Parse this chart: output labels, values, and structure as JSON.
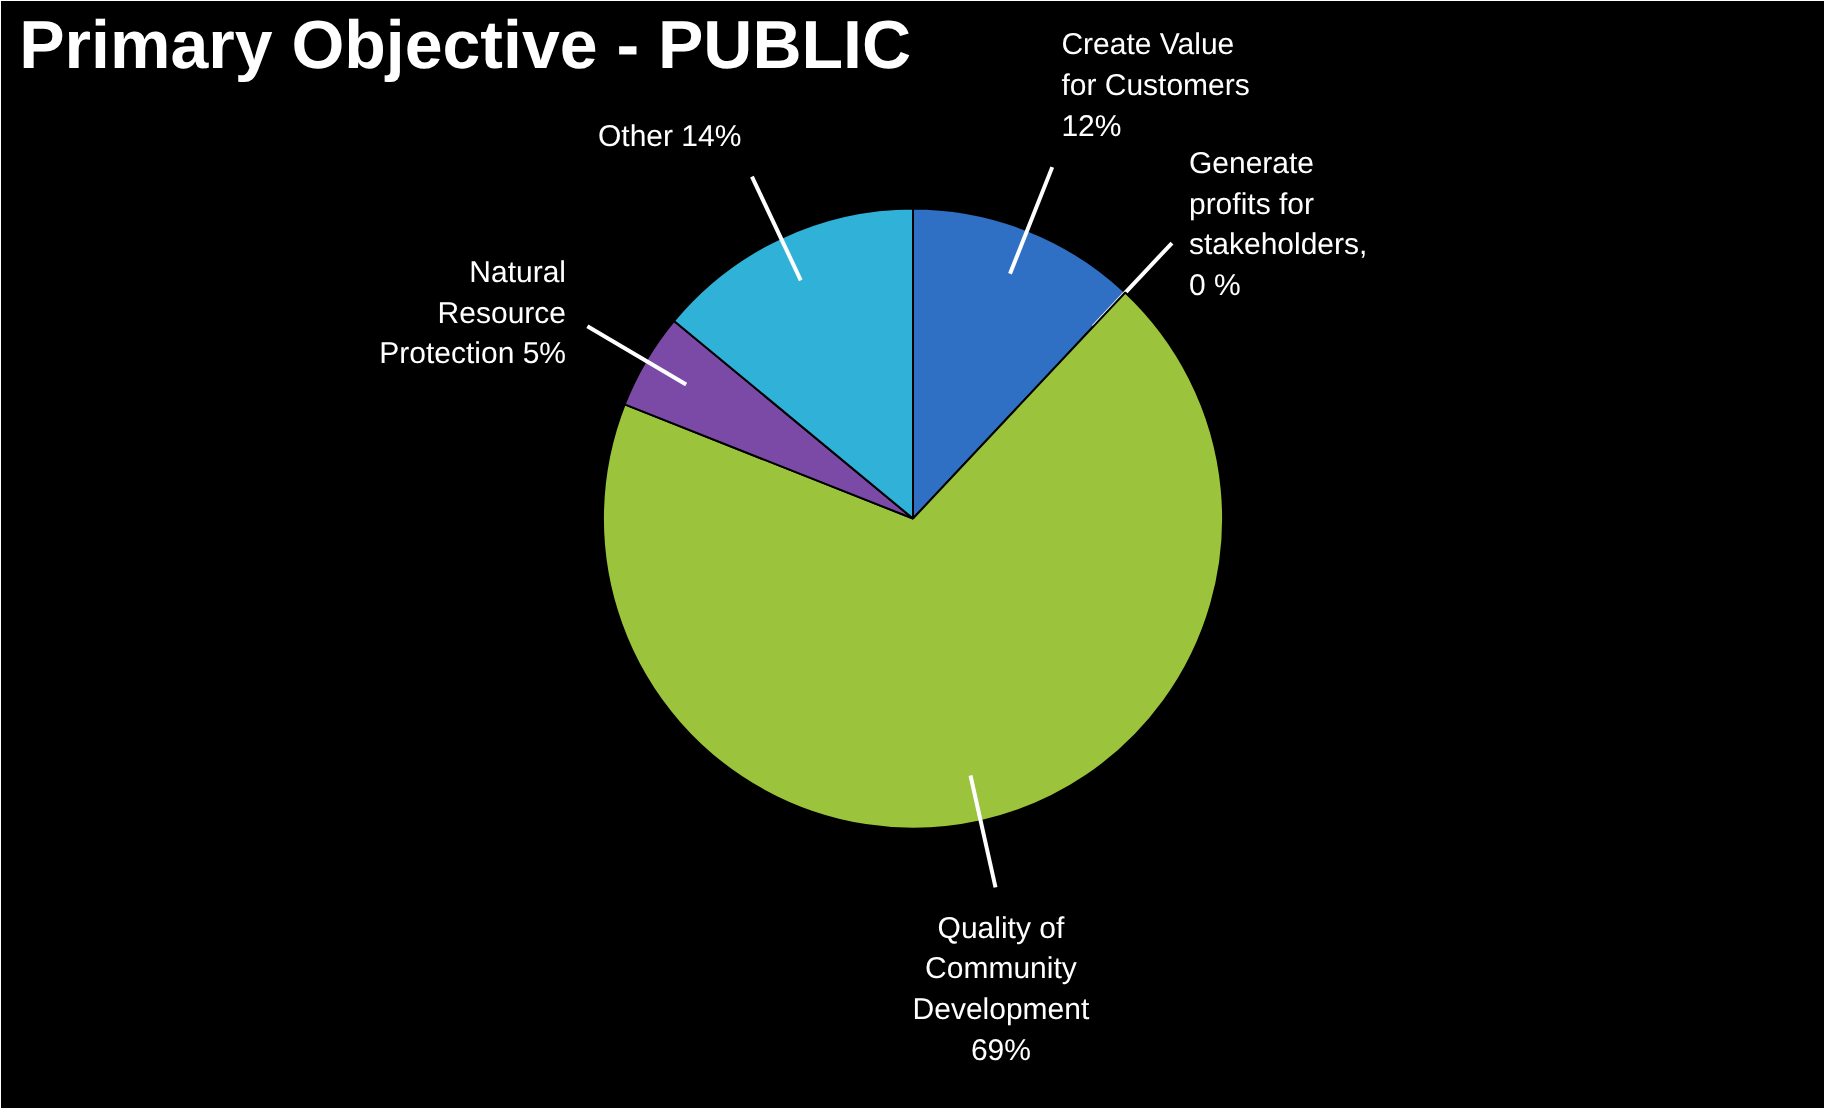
{
  "chart_data": {
    "type": "pie",
    "title": "Primary Objective - PUBLIC",
    "categories": [
      "Create Value for Customers",
      "Generate profits for stakeholders",
      "Quality of Community Development",
      "Natural Resource Protection",
      "Other"
    ],
    "values": [
      12,
      0,
      69,
      5,
      14
    ],
    "value_labels": [
      "12%",
      ", 0 %",
      "69%",
      "5%",
      "14%"
    ],
    "colors": [
      "#2f6fc4",
      "#3d8f2f",
      "#9bc43c",
      "#7b4aa6",
      "#2fb1d8"
    ]
  }
}
